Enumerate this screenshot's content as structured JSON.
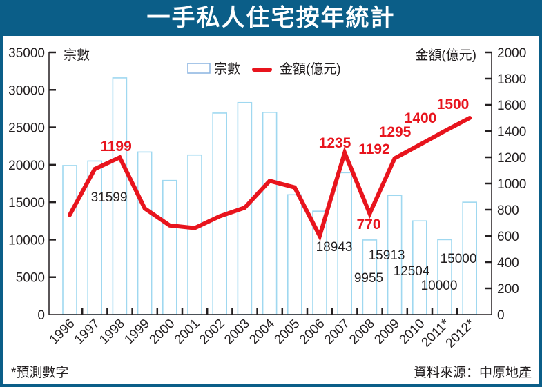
{
  "chart_data": {
    "type": "bar+line",
    "title": "一手私人住宅按年統計",
    "categories": [
      "1996",
      "1997",
      "1998",
      "1999",
      "2000",
      "2001",
      "2002",
      "2003",
      "2004",
      "2005",
      "2006",
      "2007",
      "2008",
      "2009",
      "2010",
      "2011*",
      "2012*"
    ],
    "series": [
      {
        "name": "宗數",
        "type": "bar",
        "axis": "left",
        "color": "#9fd8f0",
        "values": [
          19900,
          20500,
          31599,
          21700,
          17900,
          21300,
          26900,
          28300,
          27000,
          16000,
          13800,
          18943,
          9955,
          15913,
          12504,
          10000,
          15000
        ]
      },
      {
        "name": "金額(億元)",
        "type": "line",
        "axis": "right",
        "color": "#e8141d",
        "values": [
          760,
          1110,
          1199,
          810,
          680,
          660,
          750,
          815,
          1020,
          970,
          600,
          1235,
          770,
          1192,
          1295,
          1400,
          1500
        ]
      }
    ],
    "bar_data_labels": [
      {
        "index": 2,
        "text": "31599"
      },
      {
        "index": 11,
        "text": "18943"
      },
      {
        "index": 12,
        "text": "9955"
      },
      {
        "index": 13,
        "text": "15913"
      },
      {
        "index": 14,
        "text": "12504"
      },
      {
        "index": 15,
        "text": "10000"
      },
      {
        "index": 16,
        "text": "15000"
      }
    ],
    "line_data_labels": [
      {
        "index": 2,
        "text": "1199"
      },
      {
        "index": 11,
        "text": "1235"
      },
      {
        "index": 12,
        "text": "770"
      },
      {
        "index": 13,
        "text": "1192"
      },
      {
        "index": 14,
        "text": "1295"
      },
      {
        "index": 15,
        "text": "1400"
      },
      {
        "index": 16,
        "text": "1500"
      }
    ],
    "left_axis": {
      "label": "宗數",
      "ylim": [
        0,
        35000
      ],
      "ticks": [
        "0",
        "5000",
        "10000",
        "15000",
        "20000",
        "25000",
        "30000",
        "35000"
      ]
    },
    "right_axis": {
      "label": "金額(億元)",
      "ylim": [
        0,
        2000
      ],
      "ticks": [
        "0",
        "200",
        "400",
        "600",
        "800",
        "1000",
        "1200",
        "1400",
        "1600",
        "1800",
        "2000"
      ]
    },
    "legend": {
      "placement": "top-center",
      "entries": [
        "宗數",
        "金額(億元)"
      ]
    },
    "grid": false
  },
  "footer": {
    "note": "*預測數字",
    "source": "資料來源：中原地產"
  }
}
